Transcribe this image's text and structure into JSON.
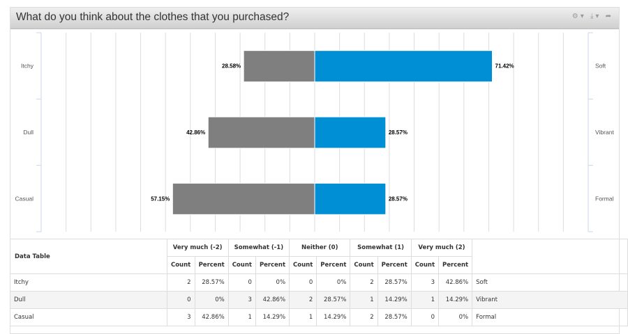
{
  "header": {
    "title": "What do you think about the clothes that you purchased?",
    "tools": [
      "settings-icon",
      "download-icon",
      "share-icon"
    ]
  },
  "chart_data": {
    "type": "bar",
    "orientation": "horizontal-diverging",
    "categories": [
      "Itchy",
      "Dull",
      "Casual"
    ],
    "right_categories": [
      "Soft",
      "Vibrant",
      "Formal"
    ],
    "xlim": [
      -110,
      110
    ],
    "grid": true,
    "series": [
      {
        "values": [
          -28.58,
          -42.86,
          -57.15
        ],
        "labels": [
          "28.58%",
          "42.86%",
          "57.15%"
        ],
        "color": "#7f7f7f"
      },
      {
        "values": [
          71.42,
          28.57,
          28.57
        ],
        "labels": [
          "71.42%",
          "28.57%",
          "28.57%"
        ],
        "color": "#008fd5"
      }
    ]
  },
  "table": {
    "title": "Data Table",
    "groups": [
      "Very much (-2)",
      "Somewhat (-1)",
      "Neither (0)",
      "Somewhat (1)",
      "Very much (2)"
    ],
    "sub": [
      "Count",
      "Percent"
    ],
    "rows": [
      {
        "left": "Itchy",
        "cells": [
          "2",
          "28.57%",
          "0",
          "0%",
          "0",
          "0%",
          "2",
          "28.57%",
          "3",
          "42.86%"
        ],
        "right": "Soft"
      },
      {
        "left": "Dull",
        "cells": [
          "0",
          "0%",
          "3",
          "42.86%",
          "2",
          "28.57%",
          "1",
          "14.29%",
          "1",
          "14.29%"
        ],
        "right": "Vibrant"
      },
      {
        "left": "Casual",
        "cells": [
          "3",
          "42.86%",
          "1",
          "14.29%",
          "1",
          "14.29%",
          "2",
          "28.57%",
          "0",
          "0%"
        ],
        "right": "Formal"
      }
    ]
  }
}
